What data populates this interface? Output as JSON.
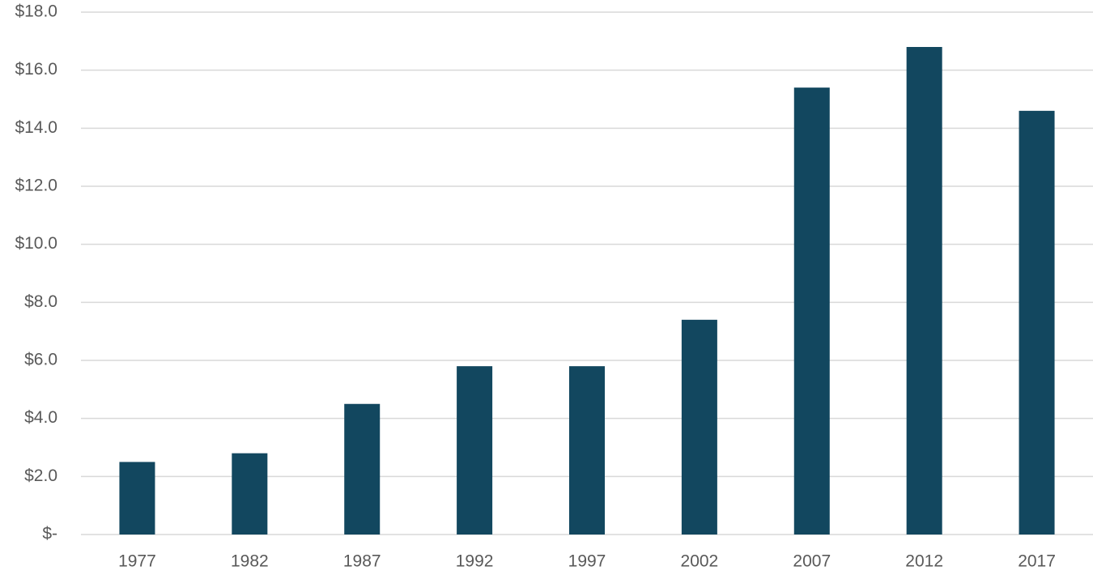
{
  "chart_data": {
    "type": "bar",
    "categories": [
      "1977",
      "1982",
      "1987",
      "1992",
      "1997",
      "2002",
      "2007",
      "2012",
      "2017"
    ],
    "values": [
      2.5,
      2.8,
      4.5,
      5.8,
      5.8,
      7.4,
      15.4,
      16.8,
      14.6
    ],
    "color": "#12475f",
    "ylim": [
      0,
      18
    ],
    "yticks": [
      {
        "value": 0,
        "label": "$-"
      },
      {
        "value": 2,
        "label": "$2.0"
      },
      {
        "value": 4,
        "label": "$4.0"
      },
      {
        "value": 6,
        "label": "$6.0"
      },
      {
        "value": 8,
        "label": "$8.0"
      },
      {
        "value": 10,
        "label": "$10.0"
      },
      {
        "value": 12,
        "label": "$12.0"
      },
      {
        "value": 14,
        "label": "$14.0"
      },
      {
        "value": 16,
        "label": "$16.0"
      },
      {
        "value": 18,
        "label": "$18.0"
      }
    ],
    "grid": true
  }
}
